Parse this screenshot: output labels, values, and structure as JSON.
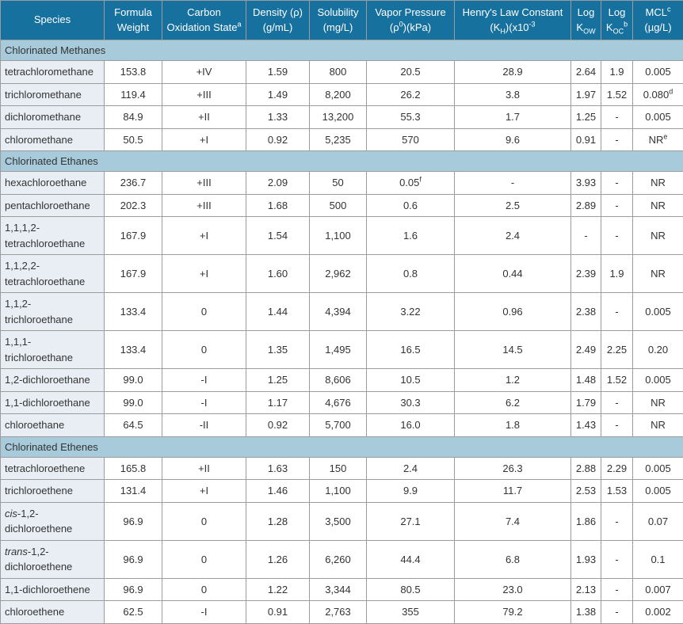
{
  "colors": {
    "header_bg": "#17719f",
    "header_text": "#ffffff",
    "section_bg": "#a8cbdb",
    "species_col_bg": "#e9eef5",
    "cell_bg": "#ffffff",
    "border": "#9c9c9c",
    "text": "#333333"
  },
  "table": {
    "columns": [
      {
        "id": "species",
        "label": "Species"
      },
      {
        "id": "formula_weight",
        "label": "Formula\nWeight"
      },
      {
        "id": "oxidation_state",
        "label": "Carbon\nOxidation State^{a}"
      },
      {
        "id": "density",
        "label": "Density (ρ)\n(g/mL)"
      },
      {
        "id": "solubility",
        "label": "Solubility\n(mg/L)"
      },
      {
        "id": "vapor_pressure",
        "label": "Vapor Pressure\n(ρ^{0})(kPa)"
      },
      {
        "id": "henrys_constant",
        "label": "Henry's Law Constant\n(K_{H})(x10^{-3}"
      },
      {
        "id": "log_kow",
        "label": "Log\nK_{OW}"
      },
      {
        "id": "log_koc",
        "label": "Log\nK_{OC}^{b}"
      },
      {
        "id": "mcl",
        "label": "MCL^{c}\n(µg/L)"
      }
    ],
    "sections": [
      {
        "title": "Chlorinated Methanes",
        "rows": [
          {
            "species": "tetrachloromethane",
            "values": [
              "153.8",
              "+IV",
              "1.59",
              "800",
              "20.5",
              "28.9",
              "2.64",
              "1.9",
              "0.005"
            ]
          },
          {
            "species": "trichloromethane",
            "values": [
              "119.4",
              "+III",
              "1.49",
              "8,200",
              "26.2",
              "3.8",
              "1.97",
              "1.52",
              "0.080^{d}"
            ]
          },
          {
            "species": "dichloromethane",
            "values": [
              "84.9",
              "+II",
              "1.33",
              "13,200",
              "55.3",
              "1.7",
              "1.25",
              "-",
              "0.005"
            ]
          },
          {
            "species": "chloromethane",
            "values": [
              "50.5",
              "+I",
              "0.92",
              "5,235",
              "570",
              "9.6",
              "0.91",
              "-",
              "NR^{e}"
            ]
          }
        ]
      },
      {
        "title": "Chlorinated Ethanes",
        "rows": [
          {
            "species": "hexachloroethane",
            "values": [
              "236.7",
              "+III",
              "2.09",
              "50",
              "0.05^{f}",
              "-",
              "3.93",
              "-",
              "NR"
            ]
          },
          {
            "species": "pentachloroethane",
            "values": [
              "202.3",
              "+III",
              "1.68",
              "500",
              "0.6",
              "2.5",
              "2.89",
              "-",
              "NR"
            ]
          },
          {
            "species": "1,1,1,2-\ntetrachloroethane",
            "values": [
              "167.9",
              "+I",
              "1.54",
              "1,100",
              "1.6",
              "2.4",
              "-",
              "-",
              "NR"
            ]
          },
          {
            "species": "1,1,2,2-\ntetrachloroethane",
            "values": [
              "167.9",
              "+I",
              "1.60",
              "2,962",
              "0.8",
              "0.44",
              "2.39",
              "1.9",
              "NR"
            ]
          },
          {
            "species": "1,1,2-\ntrichloroethane",
            "values": [
              "133.4",
              "0",
              "1.44",
              "4,394",
              "3.22",
              "0.96",
              "2.38",
              "-",
              "0.005"
            ]
          },
          {
            "species": "1,1,1-\ntrichloroethane",
            "values": [
              "133.4",
              "0",
              "1.35",
              "1,495",
              "16.5",
              "14.5",
              "2.49",
              "2.25",
              "0.20"
            ]
          },
          {
            "species": "1,2-dichloroethane",
            "values": [
              "99.0",
              "-I",
              "1.25",
              "8,606",
              "10.5",
              "1.2",
              "1.48",
              "1.52",
              "0.005"
            ]
          },
          {
            "species": "1,1-dichloroethane",
            "values": [
              "99.0",
              "-I",
              "1.17",
              "4,676",
              "30.3",
              "6.2",
              "1.79",
              "-",
              "NR"
            ]
          },
          {
            "species": "chloroethane",
            "values": [
              "64.5",
              "-II",
              "0.92",
              "5,700",
              "16.0",
              "1.8",
              "1.43",
              "-",
              "NR"
            ]
          }
        ]
      },
      {
        "title": "Chlorinated Ethenes",
        "rows": [
          {
            "species": "tetrachloroethene",
            "values": [
              "165.8",
              "+II",
              "1.63",
              "150",
              "2.4",
              "26.3",
              "2.88",
              "2.29",
              "0.005"
            ]
          },
          {
            "species": "trichloroethene",
            "values": [
              "131.4",
              "+I",
              "1.46",
              "1,100",
              "9.9",
              "11.7",
              "2.53",
              "1.53",
              "0.005"
            ]
          },
          {
            "species": "*cis*-1,2-\ndichloroethene",
            "values": [
              "96.9",
              "0",
              "1.28",
              "3,500",
              "27.1",
              "7.4",
              "1.86",
              "-",
              "0.07"
            ]
          },
          {
            "species": "*trans*-1,2-\ndichloroethene",
            "values": [
              "96.9",
              "0",
              "1.26",
              "6,260",
              "44.4",
              "6.8",
              "1.93",
              "-",
              "0.1"
            ]
          },
          {
            "species": "1,1-dichloroethene",
            "values": [
              "96.9",
              "0",
              "1.22",
              "3,344",
              "80.5",
              "23.0",
              "2.13",
              "-",
              "0.007"
            ]
          },
          {
            "species": "chloroethene",
            "values": [
              "62.5",
              "-I",
              "0.91",
              "2,763",
              "355",
              "79.2",
              "1.38",
              "-",
              "0.002"
            ]
          }
        ]
      }
    ]
  }
}
